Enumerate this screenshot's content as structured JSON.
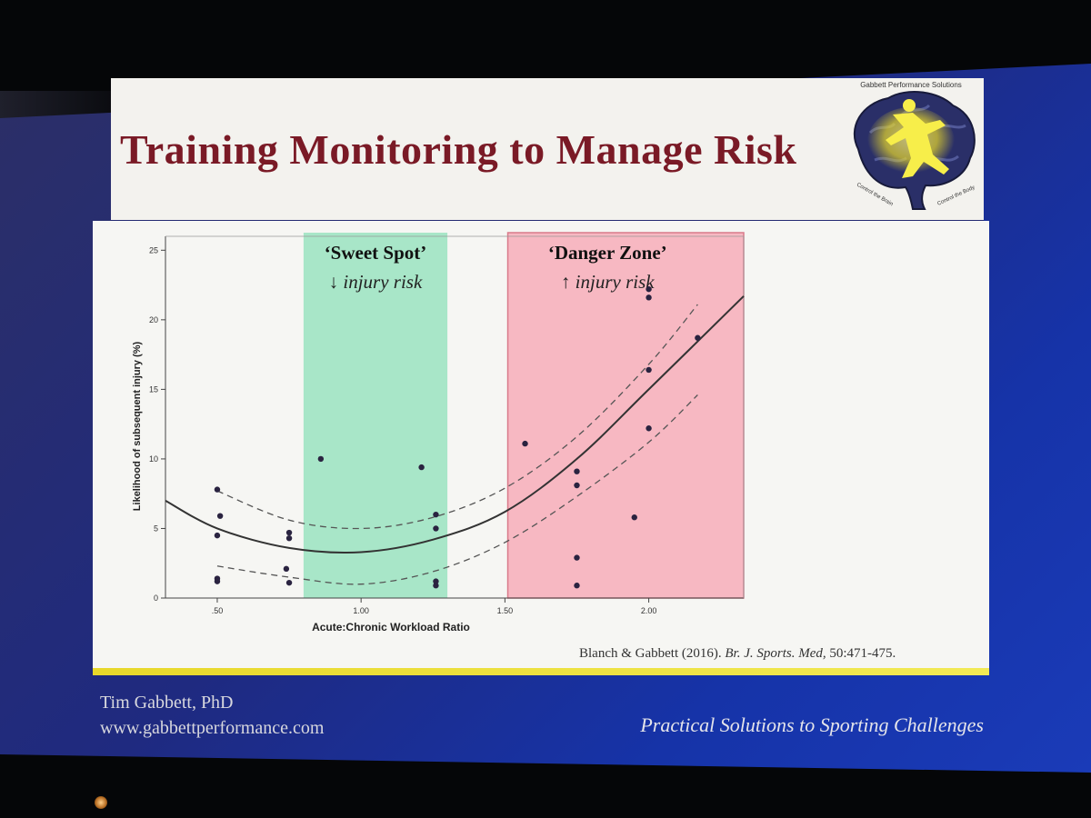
{
  "slide": {
    "title": "Training Monitoring to Manage Risk",
    "logo": {
      "text_top": "Gabbett Performance Solutions",
      "text_left": "Control the Brain",
      "text_right": "Control the Body",
      "icon": "brain-runner-logo"
    },
    "citation": {
      "authors": "Blanch & Gabbett",
      "year": "(2016).",
      "journal": "Br. J. Sports. Med,",
      "pages": "50:471-475."
    },
    "footer": {
      "author": "Tim Gabbett, PhD",
      "url": "www.gabbettperformance.com",
      "tagline": "Practical Solutions to Sporting Challenges"
    }
  },
  "chart_data": {
    "type": "scatter",
    "xlabel": "Acute:Chronic Workload Ratio",
    "ylabel": "Likelihood of subsequent injury (%)",
    "xlim": [
      0.32,
      2.33
    ],
    "ylim": [
      0,
      26
    ],
    "x_ticks": [
      0.5,
      1.0,
      1.5,
      2.0
    ],
    "x_tick_labels": [
      ".50",
      "1.00",
      "1.50",
      "2.00"
    ],
    "y_ticks": [
      0,
      5,
      10,
      15,
      20,
      25
    ],
    "y_tick_labels": [
      "0",
      "5",
      "10",
      "15",
      "20",
      "25"
    ],
    "zones": [
      {
        "title": "‘Sweet Spot’",
        "subtitle": "↓ injury risk",
        "x_start": 0.8,
        "x_end": 1.3,
        "color": "#a8e6c8"
      },
      {
        "title": "‘Danger Zone’",
        "subtitle": "↑ injury risk",
        "x_start": 1.51,
        "x_end": 2.33,
        "color": "#f7b8c2"
      }
    ],
    "points": [
      {
        "x": 0.5,
        "y": 7.8
      },
      {
        "x": 0.51,
        "y": 5.9
      },
      {
        "x": 0.5,
        "y": 4.5
      },
      {
        "x": 0.5,
        "y": 1.4
      },
      {
        "x": 0.5,
        "y": 1.2
      },
      {
        "x": 0.75,
        "y": 4.7
      },
      {
        "x": 0.75,
        "y": 4.3
      },
      {
        "x": 0.74,
        "y": 2.1
      },
      {
        "x": 0.75,
        "y": 1.1
      },
      {
        "x": 0.86,
        "y": 10.0
      },
      {
        "x": 1.21,
        "y": 9.4
      },
      {
        "x": 1.26,
        "y": 6.0
      },
      {
        "x": 1.26,
        "y": 5.0
      },
      {
        "x": 1.26,
        "y": 1.2
      },
      {
        "x": 1.26,
        "y": 0.9
      },
      {
        "x": 1.57,
        "y": 11.1
      },
      {
        "x": 1.75,
        "y": 9.1
      },
      {
        "x": 1.75,
        "y": 8.1
      },
      {
        "x": 1.75,
        "y": 2.9
      },
      {
        "x": 1.75,
        "y": 0.9
      },
      {
        "x": 1.95,
        "y": 5.8
      },
      {
        "x": 2.0,
        "y": 22.2
      },
      {
        "x": 2.0,
        "y": 21.6
      },
      {
        "x": 2.0,
        "y": 16.4
      },
      {
        "x": 2.0,
        "y": 12.2
      },
      {
        "x": 2.17,
        "y": 18.7
      }
    ],
    "fit_curve": {
      "style": "solid",
      "points": [
        [
          0.32,
          7.0
        ],
        [
          0.5,
          5.0
        ],
        [
          0.75,
          3.6
        ],
        [
          1.0,
          3.3
        ],
        [
          1.25,
          4.2
        ],
        [
          1.5,
          6.2
        ],
        [
          1.75,
          10.0
        ],
        [
          2.0,
          15.0
        ],
        [
          2.33,
          21.7
        ]
      ]
    },
    "ci_upper": {
      "style": "dashed",
      "points": [
        [
          0.5,
          7.7
        ],
        [
          0.75,
          5.6
        ],
        [
          1.0,
          5.0
        ],
        [
          1.25,
          5.8
        ],
        [
          1.5,
          7.9
        ],
        [
          1.75,
          11.6
        ],
        [
          2.0,
          16.8
        ],
        [
          2.17,
          21.1
        ]
      ]
    },
    "ci_lower": {
      "style": "dashed",
      "points": [
        [
          0.5,
          2.3
        ],
        [
          0.75,
          1.5
        ],
        [
          1.0,
          1.0
        ],
        [
          1.25,
          1.9
        ],
        [
          1.5,
          4.0
        ],
        [
          1.75,
          7.3
        ],
        [
          2.0,
          11.2
        ],
        [
          2.17,
          14.6
        ]
      ]
    },
    "grid": false
  }
}
